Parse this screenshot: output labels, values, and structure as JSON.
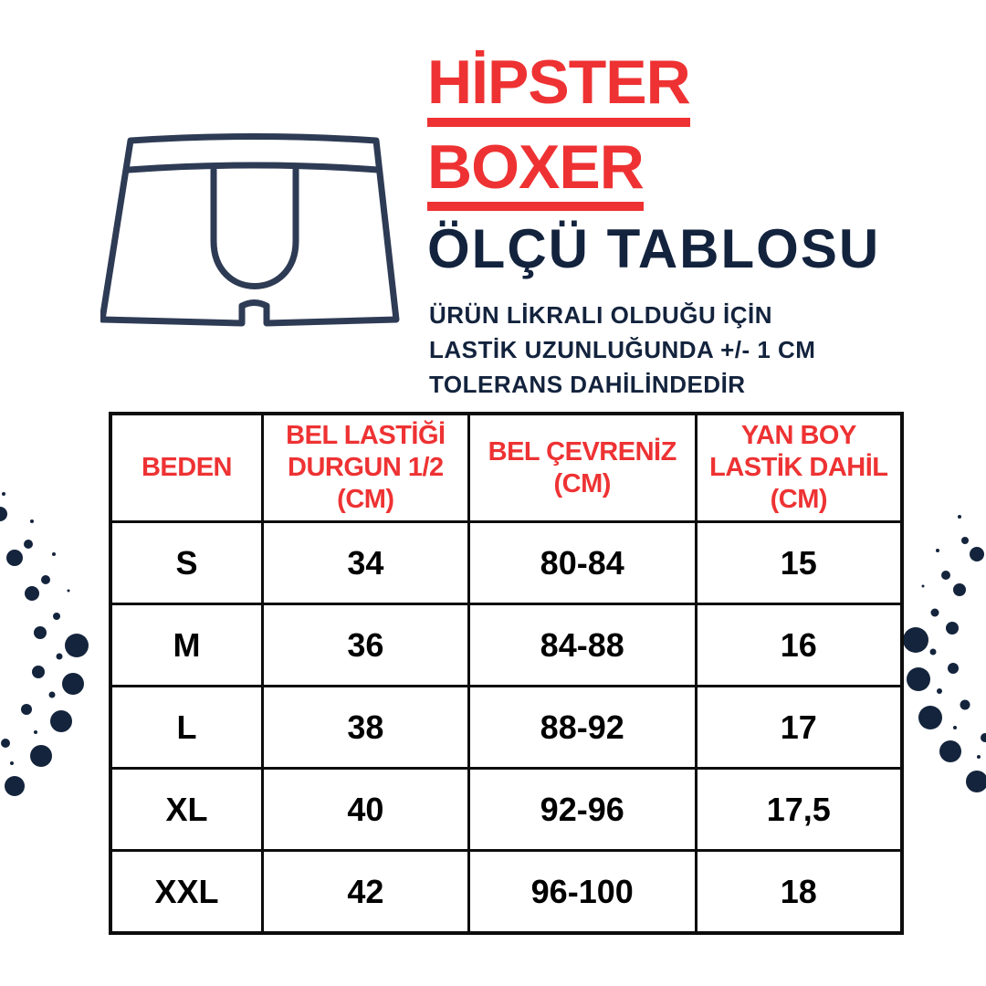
{
  "colors": {
    "accent_red": "#EE3233",
    "navy_text": "#13233D",
    "dot_navy": "#14243C",
    "illustration_stroke": "#2E3B54",
    "table_border": "#0D0D0D",
    "cell_text": "#000000",
    "background": "#FFFFFF"
  },
  "header": {
    "title_line1": "HİPSTER",
    "title_line2": "BOXER",
    "chart_title": "ÖLÇÜ TABLOSU",
    "note": "ÜRÜN LİKRALI OLDUĞU İÇİN\nLASTİK UZUNLUĞUNDA +/- 1 CM\nTOLERANS DAHİLİNDEDİR"
  },
  "illustration": {
    "name": "boxer-briefs-line-drawing"
  },
  "table": {
    "headers": [
      {
        "label": "BEDEN"
      },
      {
        "label": "BEL LASTİĞİ\nDURGUN 1/2\n(CM)"
      },
      {
        "label": "BEL ÇEVRENİZ\n(CM)"
      },
      {
        "label": "YAN BOY\nLASTİK DAHİL\n(CM)"
      }
    ],
    "rows": [
      [
        "S",
        "34",
        "80-84",
        "15"
      ],
      [
        "M",
        "36",
        "84-88",
        "16"
      ],
      [
        "L",
        "38",
        "88-92",
        "17"
      ],
      [
        "XL",
        "40",
        "92-96",
        "17,5"
      ],
      [
        "XXL",
        "42",
        "96-100",
        "18"
      ]
    ]
  },
  "chart_data": {
    "type": "table",
    "title": "ÖLÇÜ TABLOSU",
    "columns": [
      "BEDEN",
      "BEL LASTİĞİ DURGUN 1/2 (CM)",
      "BEL ÇEVRENİZ (CM)",
      "YAN BOY LASTİK DAHİL (CM)"
    ],
    "rows": [
      [
        "S",
        34,
        "80-84",
        15
      ],
      [
        "M",
        36,
        "84-88",
        16
      ],
      [
        "L",
        38,
        "88-92",
        17
      ],
      [
        "XL",
        40,
        "92-96",
        17.5
      ],
      [
        "XXL",
        42,
        "96-100",
        18
      ]
    ]
  },
  "decor": {
    "left_dots": [
      [
        4,
        541,
        2
      ],
      [
        0,
        563,
        8
      ],
      [
        35,
        571,
        2
      ],
      [
        31,
        596,
        5
      ],
      [
        16,
        611,
        9
      ],
      [
        59,
        607,
        2
      ],
      [
        50,
        635,
        5
      ],
      [
        35,
        650,
        8
      ],
      [
        75,
        647,
        1.5
      ],
      [
        62,
        675,
        4
      ],
      [
        44,
        693,
        7
      ],
      [
        84,
        707,
        13
      ],
      [
        65,
        719,
        3.5
      ],
      [
        42,
        736,
        7
      ],
      [
        80,
        749,
        12
      ],
      [
        57,
        761,
        3.5
      ],
      [
        29,
        777,
        6
      ],
      [
        67,
        790,
        12
      ],
      [
        39,
        802,
        2
      ],
      [
        6,
        814,
        5
      ],
      [
        45,
        828,
        12
      ],
      [
        13,
        836,
        2
      ],
      [
        16,
        861,
        11
      ]
    ],
    "right_dots": [
      [
        1051,
        566,
        2
      ],
      [
        1057,
        592,
        4
      ],
      [
        1027,
        603,
        2
      ],
      [
        1070,
        607,
        8
      ],
      [
        1036,
        630,
        5
      ],
      [
        1011,
        642,
        1.5
      ],
      [
        1051,
        646,
        7
      ],
      [
        1024,
        671,
        4.5
      ],
      [
        1043,
        688,
        7
      ],
      [
        1003,
        701,
        14
      ],
      [
        1022,
        714,
        3.5
      ],
      [
        1044,
        732,
        6
      ],
      [
        1006,
        744,
        13
      ],
      [
        1029,
        757,
        3
      ],
      [
        1057,
        772,
        5.5
      ],
      [
        1019,
        786,
        13
      ],
      [
        1046,
        797,
        2
      ],
      [
        1079,
        808,
        5
      ],
      [
        1041,
        823,
        12
      ],
      [
        1072,
        829,
        2
      ],
      [
        1070,
        856,
        12
      ]
    ]
  }
}
